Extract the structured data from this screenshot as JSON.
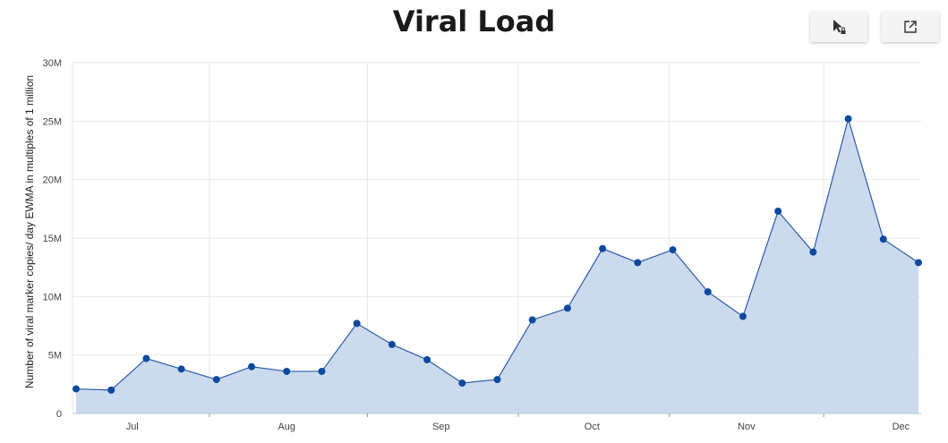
{
  "chart_data": {
    "type": "area",
    "title": "Viral Load",
    "ylabel": "Number of viral marker copies/ day EWMA in multiples of 1 million",
    "xlabel": "",
    "ylim": [
      0,
      30000000
    ],
    "y_ticks": [
      0,
      5000000,
      10000000,
      15000000,
      20000000,
      25000000,
      30000000
    ],
    "y_tick_labels": [
      "0",
      "5M",
      "10M",
      "15M",
      "20M",
      "25M",
      "30M"
    ],
    "x_tick_labels": [
      "Jul",
      "Aug",
      "Sep",
      "Oct",
      "Nov",
      "Dec"
    ],
    "x_tick_positions": [
      1.6,
      6.0,
      10.4,
      14.7,
      19.1,
      23.5
    ],
    "x_minor_gridlines": [
      3.8,
      8.3,
      12.6,
      16.9,
      21.3
    ],
    "xlim": [
      0,
      24
    ],
    "grid": true,
    "legend": "none",
    "series": [
      {
        "x": [
          0,
          1,
          2,
          3,
          4,
          5,
          6,
          7,
          8,
          9,
          10,
          11,
          12,
          13,
          14,
          15,
          16,
          17,
          18,
          19,
          20,
          21,
          22,
          23,
          24
        ],
        "values": [
          2100000,
          2000000,
          4700000,
          3800000,
          2900000,
          4000000,
          3600000,
          3600000,
          7700000,
          5900000,
          4600000,
          2600000,
          2900000,
          8000000,
          9000000,
          14100000,
          12900000,
          14000000,
          10400000,
          8300000,
          17300000,
          13800000,
          25200000,
          14900000,
          12900000
        ]
      }
    ],
    "colors": {
      "line": "#2a5caa",
      "point": "#0d4a9e",
      "fill": "#ccdaee",
      "grid": "#e6e6e6",
      "axis": "#b8c4d8"
    }
  },
  "toolbar": {
    "select_icon": "cursor-lock-icon",
    "popout_icon": "open-external-icon"
  }
}
